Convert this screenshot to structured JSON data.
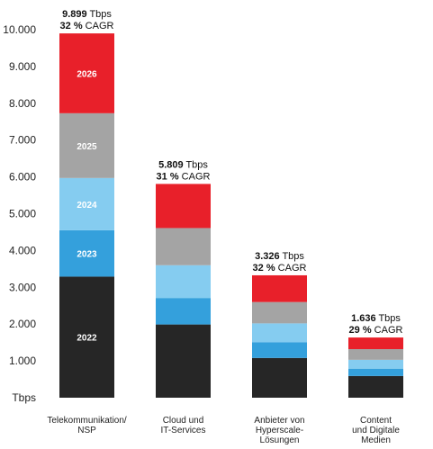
{
  "chart_data": {
    "type": "bar",
    "stacked": true,
    "categories": [
      [
        "Telekommunikation/",
        "NSP"
      ],
      [
        "Cloud und",
        "IT-Services"
      ],
      [
        "Anbieter von",
        "Hyperscale-",
        "Lösungen"
      ],
      [
        "Content",
        "und Digitale",
        "Medien"
      ]
    ],
    "series": [
      {
        "name": "2022",
        "color": "#262626",
        "values": [
          3290,
          1990,
          1080,
          590
        ]
      },
      {
        "name": "2023",
        "color": "#34a0dc",
        "values": [
          1260,
          720,
          430,
          200
        ]
      },
      {
        "name": "2024",
        "color": "#85ccf0",
        "values": [
          1420,
          890,
          510,
          240
        ]
      },
      {
        "name": "2025",
        "color": "#a4a4a4",
        "values": [
          1760,
          1010,
          580,
          290
        ]
      },
      {
        "name": "2026",
        "color": "#e8202a",
        "values": [
          2169,
          1199,
          726,
          316
        ]
      }
    ],
    "totals": [
      {
        "value": "9.899",
        "unit": "Tbps",
        "cagr_value": "32 %",
        "cagr_label": "CAGR"
      },
      {
        "value": "5.809",
        "unit": "Tbps",
        "cagr_value": "31 %",
        "cagr_label": "CAGR"
      },
      {
        "value": "3.326",
        "unit": "Tbps",
        "cagr_value": "32 %",
        "cagr_label": "CAGR"
      },
      {
        "value": "1.636",
        "unit": "Tbps",
        "cagr_value": "29 %",
        "cagr_label": "CAGR"
      }
    ],
    "y_ticks": [
      {
        "value": 0,
        "label": "Tbps"
      },
      {
        "value": 1000,
        "label": "1.000"
      },
      {
        "value": 2000,
        "label": "2.000"
      },
      {
        "value": 3000,
        "label": "3.000"
      },
      {
        "value": 4000,
        "label": "4.000"
      },
      {
        "value": 5000,
        "label": "5.000"
      },
      {
        "value": 6000,
        "label": "6.000"
      },
      {
        "value": 7000,
        "label": "7.000"
      },
      {
        "value": 8000,
        "label": "8.000"
      },
      {
        "value": 9000,
        "label": "9.000"
      },
      {
        "value": 10000,
        "label": "10.000"
      }
    ],
    "ylim": [
      0,
      10000
    ],
    "grid": false,
    "legend": "inline on first bar"
  }
}
